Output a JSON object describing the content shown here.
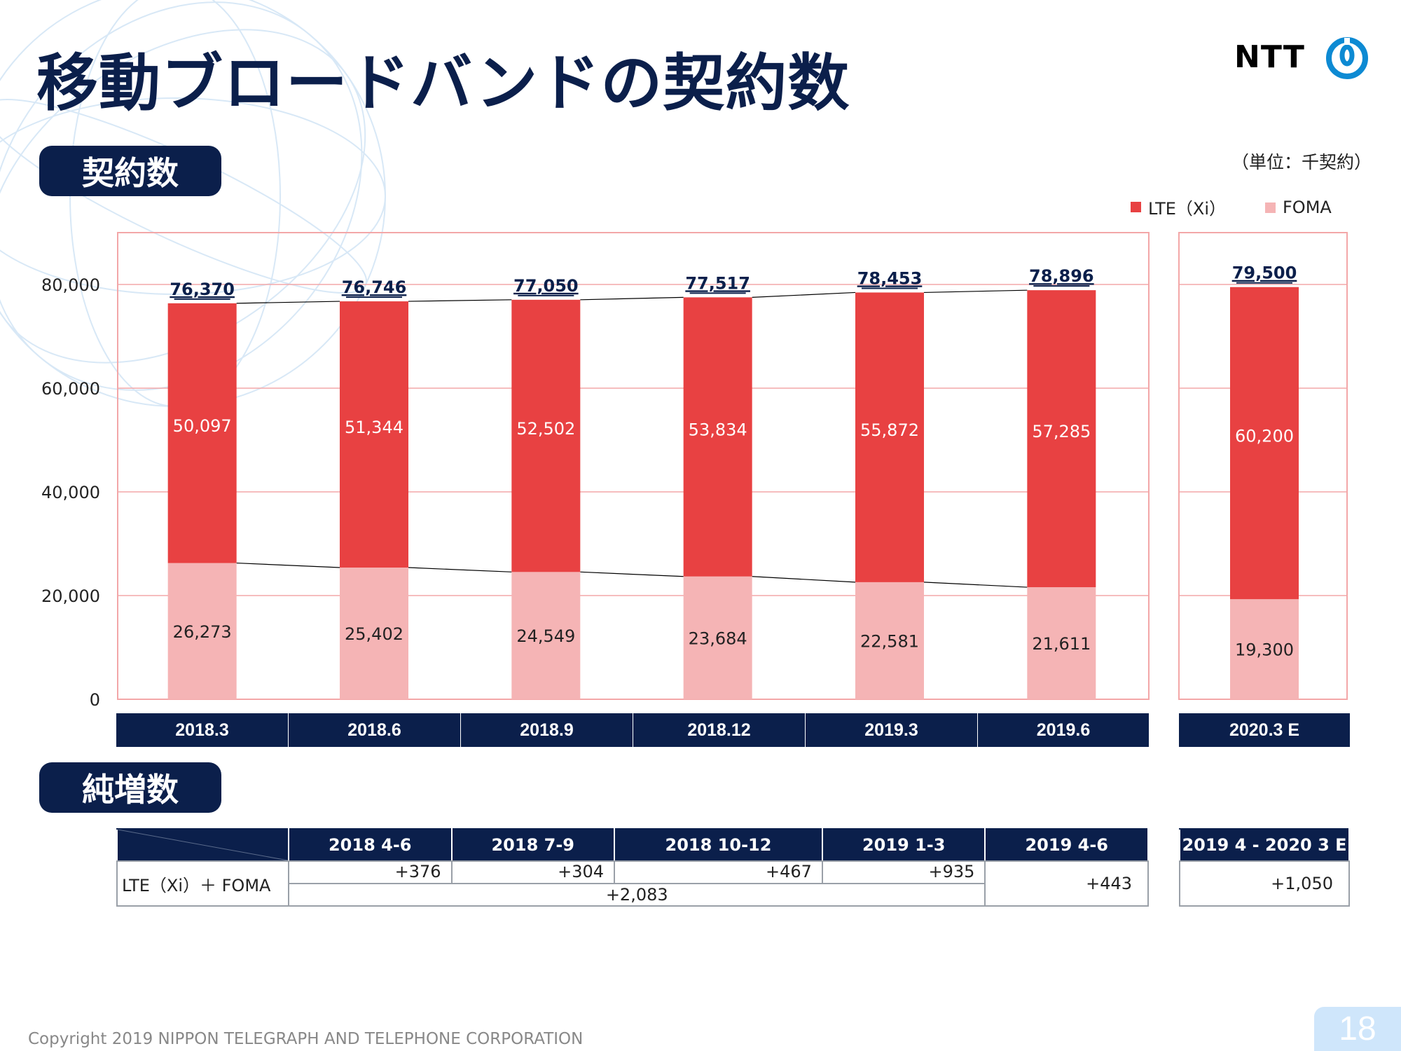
{
  "header": {
    "title": "移動ブロードバンドの契約数",
    "logo_text": "NTT"
  },
  "sections": {
    "contracts_label": "契約数",
    "net_additions_label": "純増数"
  },
  "unit_note": "（単位：千契約）",
  "legend": {
    "lte_label": "LTE（Xi）",
    "foma_label": "FOMA"
  },
  "colors": {
    "lte": "#e84142",
    "foma": "#f5b4b5",
    "navy": "#0b1f4b",
    "grid": "#f3a7a8"
  },
  "chart_data": {
    "type": "bar",
    "stacked": true,
    "categories": [
      "2018.3",
      "2018.6",
      "2018.9",
      "2018.12",
      "2019.3",
      "2019.6",
      "2020.3 E"
    ],
    "series": [
      {
        "name": "LTE（Xi）",
        "values": [
          50097,
          51344,
          52502,
          53834,
          55872,
          57285,
          60200
        ]
      },
      {
        "name": "FOMA",
        "values": [
          26273,
          25402,
          24549,
          23684,
          22581,
          21611,
          19300
        ]
      }
    ],
    "totals": [
      76370,
      76746,
      77050,
      77517,
      78453,
      78896,
      79500
    ],
    "value_labels": {
      "lte": [
        "50,097",
        "51,344",
        "52,502",
        "53,834",
        "55,872",
        "57,285",
        "60,200"
      ],
      "foma": [
        "26,273",
        "25,402",
        "24,549",
        "23,684",
        "22,581",
        "21,611",
        "19,300"
      ],
      "totals": [
        "76,370",
        "76,746",
        "77,050",
        "77,517",
        "78,453",
        "78,896",
        "79,500"
      ]
    },
    "ylim": [
      0,
      80000
    ],
    "yticks": [
      0,
      20000,
      40000,
      60000,
      80000
    ],
    "ytick_labels": [
      "0",
      "20,000",
      "40,000",
      "60,000",
      "80,000"
    ],
    "grid": true,
    "legend_position": "top-right"
  },
  "net_table": {
    "headers": [
      "2018 4-6",
      "2018 7-9",
      "2018 10-12",
      "2019 1-3",
      "2019 4-6"
    ],
    "forecast_header": "2019 4 - 2020 3 E",
    "row_label": "LTE（Xi）＋ FOMA",
    "quarterly_values": [
      "+376",
      "+304",
      "+467",
      "+935"
    ],
    "fy_total": "+2,083",
    "latest_value": "+443",
    "forecast_value": "+1,050"
  },
  "footer": {
    "copyright": "Copyright 2019 NIPPON TELEGRAPH AND TELEPHONE CORPORATION",
    "page_number": "18"
  }
}
